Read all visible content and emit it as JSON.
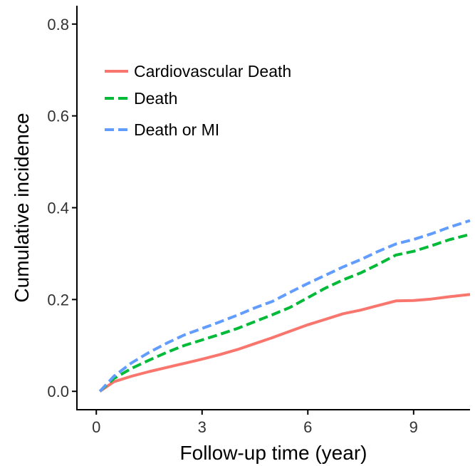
{
  "chart_data": {
    "type": "line",
    "title": "",
    "xlabel": "Follow-up time (year)",
    "ylabel": "Cumulative incidence",
    "xlim": [
      -0.55,
      10.6
    ],
    "ylim": [
      -0.04,
      0.84
    ],
    "x_ticks": [
      0,
      3,
      6,
      9
    ],
    "x_tick_labels": [
      "0",
      "3",
      "6",
      "9"
    ],
    "y_ticks": [
      0.0,
      0.2,
      0.4,
      0.6,
      0.8
    ],
    "y_tick_labels": [
      "0.0",
      "0.2",
      "0.4",
      "0.6",
      "0.8"
    ],
    "grid": false,
    "legend_position": "top-left",
    "series": [
      {
        "name": "Cardiovascular Death",
        "color": "#F8766D",
        "dash": "solid",
        "x": [
          0.1,
          0.5,
          1,
          1.5,
          2,
          2.5,
          3,
          3.5,
          4,
          4.5,
          5,
          5.5,
          6,
          6.5,
          7,
          7.5,
          8,
          8.5,
          9,
          9.5,
          10,
          10.6
        ],
        "y": [
          0.0,
          0.021,
          0.033,
          0.043,
          0.052,
          0.061,
          0.07,
          0.08,
          0.091,
          0.104,
          0.117,
          0.131,
          0.145,
          0.157,
          0.169,
          0.177,
          0.187,
          0.197,
          0.198,
          0.201,
          0.206,
          0.211
        ]
      },
      {
        "name": "Death",
        "color": "#00BA38",
        "dash": "dashed",
        "x": [
          0.1,
          0.5,
          1,
          1.5,
          2,
          2.5,
          3,
          3.5,
          4,
          4.5,
          5,
          5.5,
          6,
          6.5,
          7,
          7.5,
          8,
          8.5,
          9,
          9.5,
          10,
          10.6
        ],
        "y": [
          0.0,
          0.028,
          0.05,
          0.068,
          0.085,
          0.1,
          0.112,
          0.124,
          0.137,
          0.152,
          0.167,
          0.183,
          0.204,
          0.225,
          0.243,
          0.258,
          0.277,
          0.297,
          0.305,
          0.317,
          0.33,
          0.342
        ]
      },
      {
        "name": "Death or MI",
        "color": "#619CFF",
        "dash": "dashed",
        "x": [
          0.1,
          0.5,
          1,
          1.5,
          2,
          2.5,
          3,
          3.5,
          4,
          4.5,
          5,
          5.5,
          6,
          6.5,
          7,
          7.5,
          8,
          8.5,
          9,
          9.5,
          10,
          10.6
        ],
        "y": [
          0.0,
          0.033,
          0.062,
          0.085,
          0.105,
          0.123,
          0.137,
          0.151,
          0.166,
          0.182,
          0.196,
          0.216,
          0.235,
          0.253,
          0.271,
          0.287,
          0.305,
          0.321,
          0.331,
          0.343,
          0.357,
          0.372
        ]
      }
    ]
  }
}
